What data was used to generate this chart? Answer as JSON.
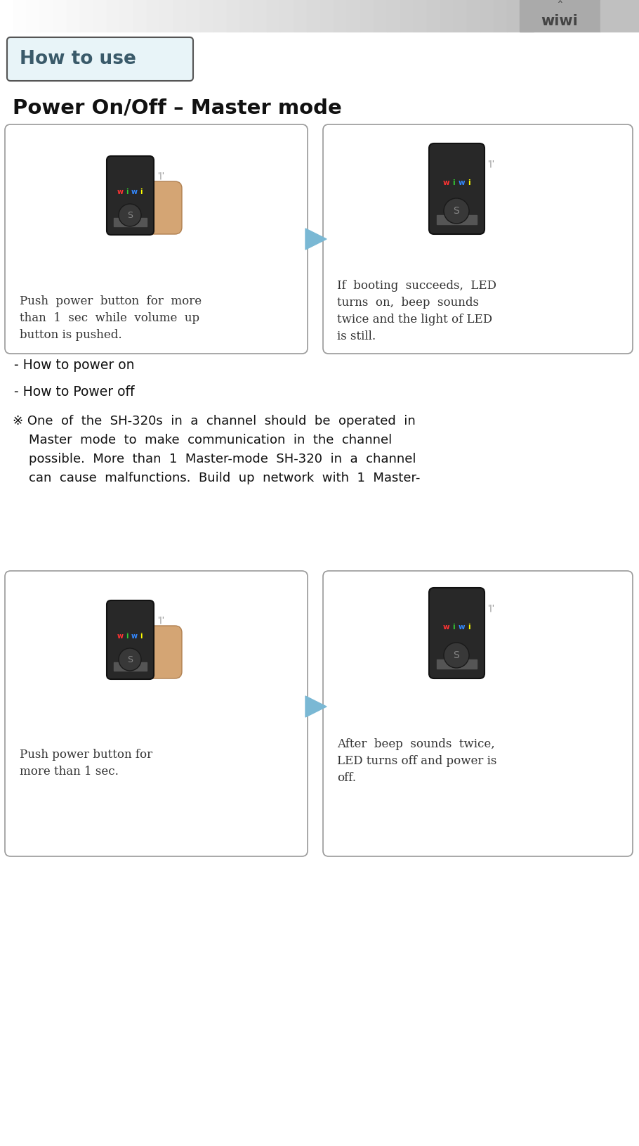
{
  "title_box_text": "How to use",
  "title_box_bg": "#e8f4f8",
  "title_box_border": "#555555",
  "subtitle": "Power On/Off – Master mode",
  "bg_color": "#ffffff",
  "panel_border": "#999999",
  "panel_bg": "#ffffff",
  "arrow_color": "#7ab8d4",
  "top_left_caption": "Push  power  button  for  more\nthan  1  sec  while  volume  up\nbutton is pushed.",
  "top_right_caption": "If  booting  succeeds,  LED\nturns  on,  beep  sounds\ntwice and the light of LED\nis still.",
  "bottom_left_caption": "Push power button for\nmore than 1 sec.",
  "bottom_right_caption": "After  beep  sounds  twice,\nLED turns off and power is\noff.",
  "bullet1": "- How to power on",
  "bullet2": "- How to Power off",
  "note_symbol": "※",
  "note_text": " One  of  the  SH-320s  in  a  channel  should  be  operated  in\n    Master  mode  to  make  communication  in  the  channel\n    possible.  More  than  1  Master-mode  SH-320  in  a  channel\n    can  cause  malfunctions.  Build  up  network  with  1  Master-",
  "font_color": "#222222",
  "caption_font_color": "#333333"
}
